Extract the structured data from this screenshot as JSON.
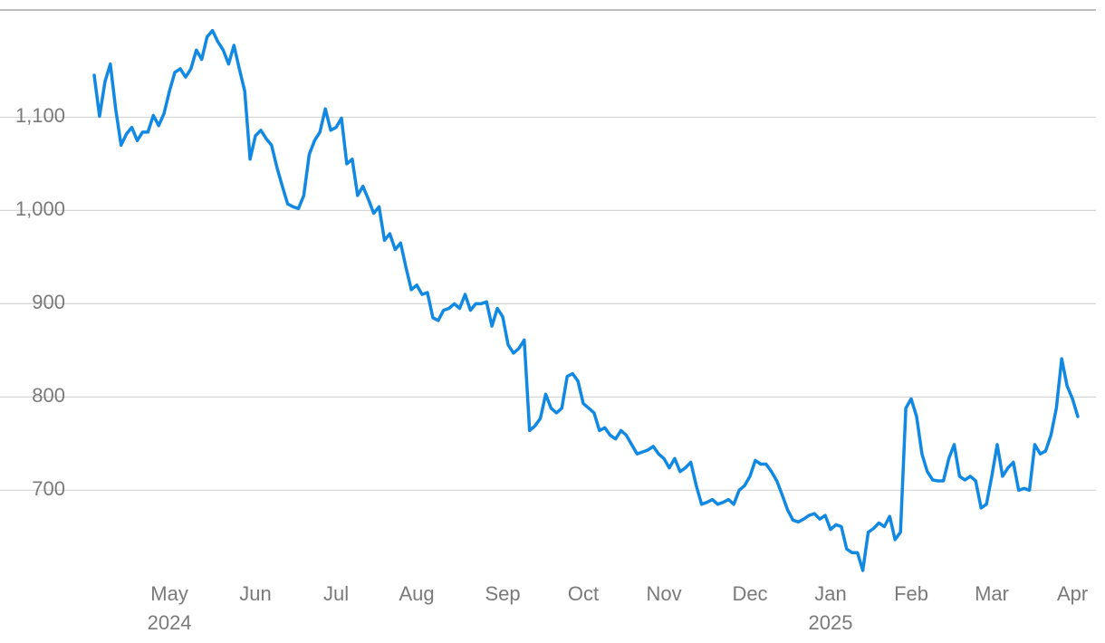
{
  "chart_data": {
    "type": "line",
    "color": "#1189e3",
    "grid": true,
    "ylim": [
      610,
      1215
    ],
    "yticks": [
      700,
      800,
      900,
      {
        "value": 1000,
        "label": "1,000"
      },
      {
        "value": 1100,
        "label": "1,100"
      }
    ],
    "categories": [
      null,
      null,
      null,
      null,
      null,
      null,
      null,
      null,
      null,
      null,
      null,
      null,
      null,
      null,
      "May\n2024",
      null,
      null,
      null,
      null,
      null,
      null,
      null,
      null,
      null,
      null,
      null,
      null,
      null,
      null,
      null,
      "Jun",
      null,
      null,
      null,
      null,
      null,
      null,
      null,
      null,
      null,
      null,
      null,
      null,
      null,
      null,
      "Jul",
      null,
      null,
      null,
      null,
      null,
      null,
      null,
      null,
      null,
      null,
      null,
      null,
      null,
      null,
      "Aug",
      null,
      null,
      null,
      null,
      null,
      null,
      null,
      null,
      null,
      null,
      null,
      null,
      null,
      null,
      null,
      "Sep",
      null,
      null,
      null,
      null,
      null,
      null,
      null,
      null,
      null,
      null,
      null,
      null,
      null,
      null,
      "Oct",
      null,
      null,
      null,
      null,
      null,
      null,
      null,
      null,
      null,
      null,
      null,
      null,
      null,
      null,
      "Nov",
      null,
      null,
      null,
      null,
      null,
      null,
      null,
      null,
      null,
      null,
      null,
      null,
      null,
      null,
      null,
      "Dec",
      null,
      null,
      null,
      null,
      null,
      null,
      null,
      null,
      null,
      null,
      null,
      null,
      null,
      null,
      "Jan\n2025",
      null,
      null,
      null,
      null,
      null,
      null,
      null,
      null,
      null,
      null,
      null,
      null,
      null,
      null,
      "Feb",
      null,
      null,
      null,
      null,
      null,
      null,
      null,
      null,
      null,
      null,
      null,
      null,
      null,
      null,
      "Mar",
      null,
      null,
      null,
      null,
      null,
      null,
      null,
      null,
      null,
      null,
      null,
      null,
      null,
      null,
      "Apr",
      null
    ],
    "values": [
      1145,
      1101,
      1138,
      1157,
      1109,
      1070,
      1082,
      1089,
      1075,
      1084,
      1084,
      1102,
      1091,
      1104,
      1128,
      1148,
      1152,
      1143,
      1152,
      1172,
      1162,
      1186,
      1193,
      1181,
      1172,
      1157,
      1177,
      1152,
      1128,
      1055,
      1080,
      1086,
      1077,
      1070,
      1046,
      1026,
      1007,
      1004,
      1002,
      1016,
      1060,
      1075,
      1084,
      1109,
      1086,
      1089,
      1099,
      1050,
      1055,
      1016,
      1026,
      1012,
      997,
      1004,
      968,
      975,
      958,
      965,
      939,
      915,
      920,
      910,
      912,
      885,
      882,
      893,
      895,
      900,
      895,
      910,
      893,
      900,
      900,
      902,
      876,
      895,
      886,
      856,
      847,
      852,
      861,
      764,
      769,
      777,
      803,
      788,
      783,
      788,
      822,
      825,
      817,
      793,
      788,
      783,
      764,
      767,
      759,
      755,
      764,
      759,
      749,
      739,
      741,
      743,
      747,
      739,
      734,
      724,
      734,
      720,
      724,
      730,
      705,
      685,
      687,
      690,
      685,
      687,
      690,
      685,
      700,
      705,
      715,
      732,
      728,
      728,
      720,
      710,
      695,
      679,
      668,
      666,
      669,
      673,
      675,
      669,
      673,
      658,
      663,
      661,
      637,
      633,
      633,
      614,
      655,
      659,
      665,
      661,
      672,
      647,
      655,
      788,
      798,
      779,
      739,
      720,
      711,
      710,
      710,
      734,
      749,
      715,
      711,
      715,
      710,
      681,
      685,
      715,
      749,
      715,
      724,
      730,
      700,
      702,
      700,
      749,
      739,
      742,
      759,
      788,
      841,
      812,
      798,
      779
    ]
  }
}
